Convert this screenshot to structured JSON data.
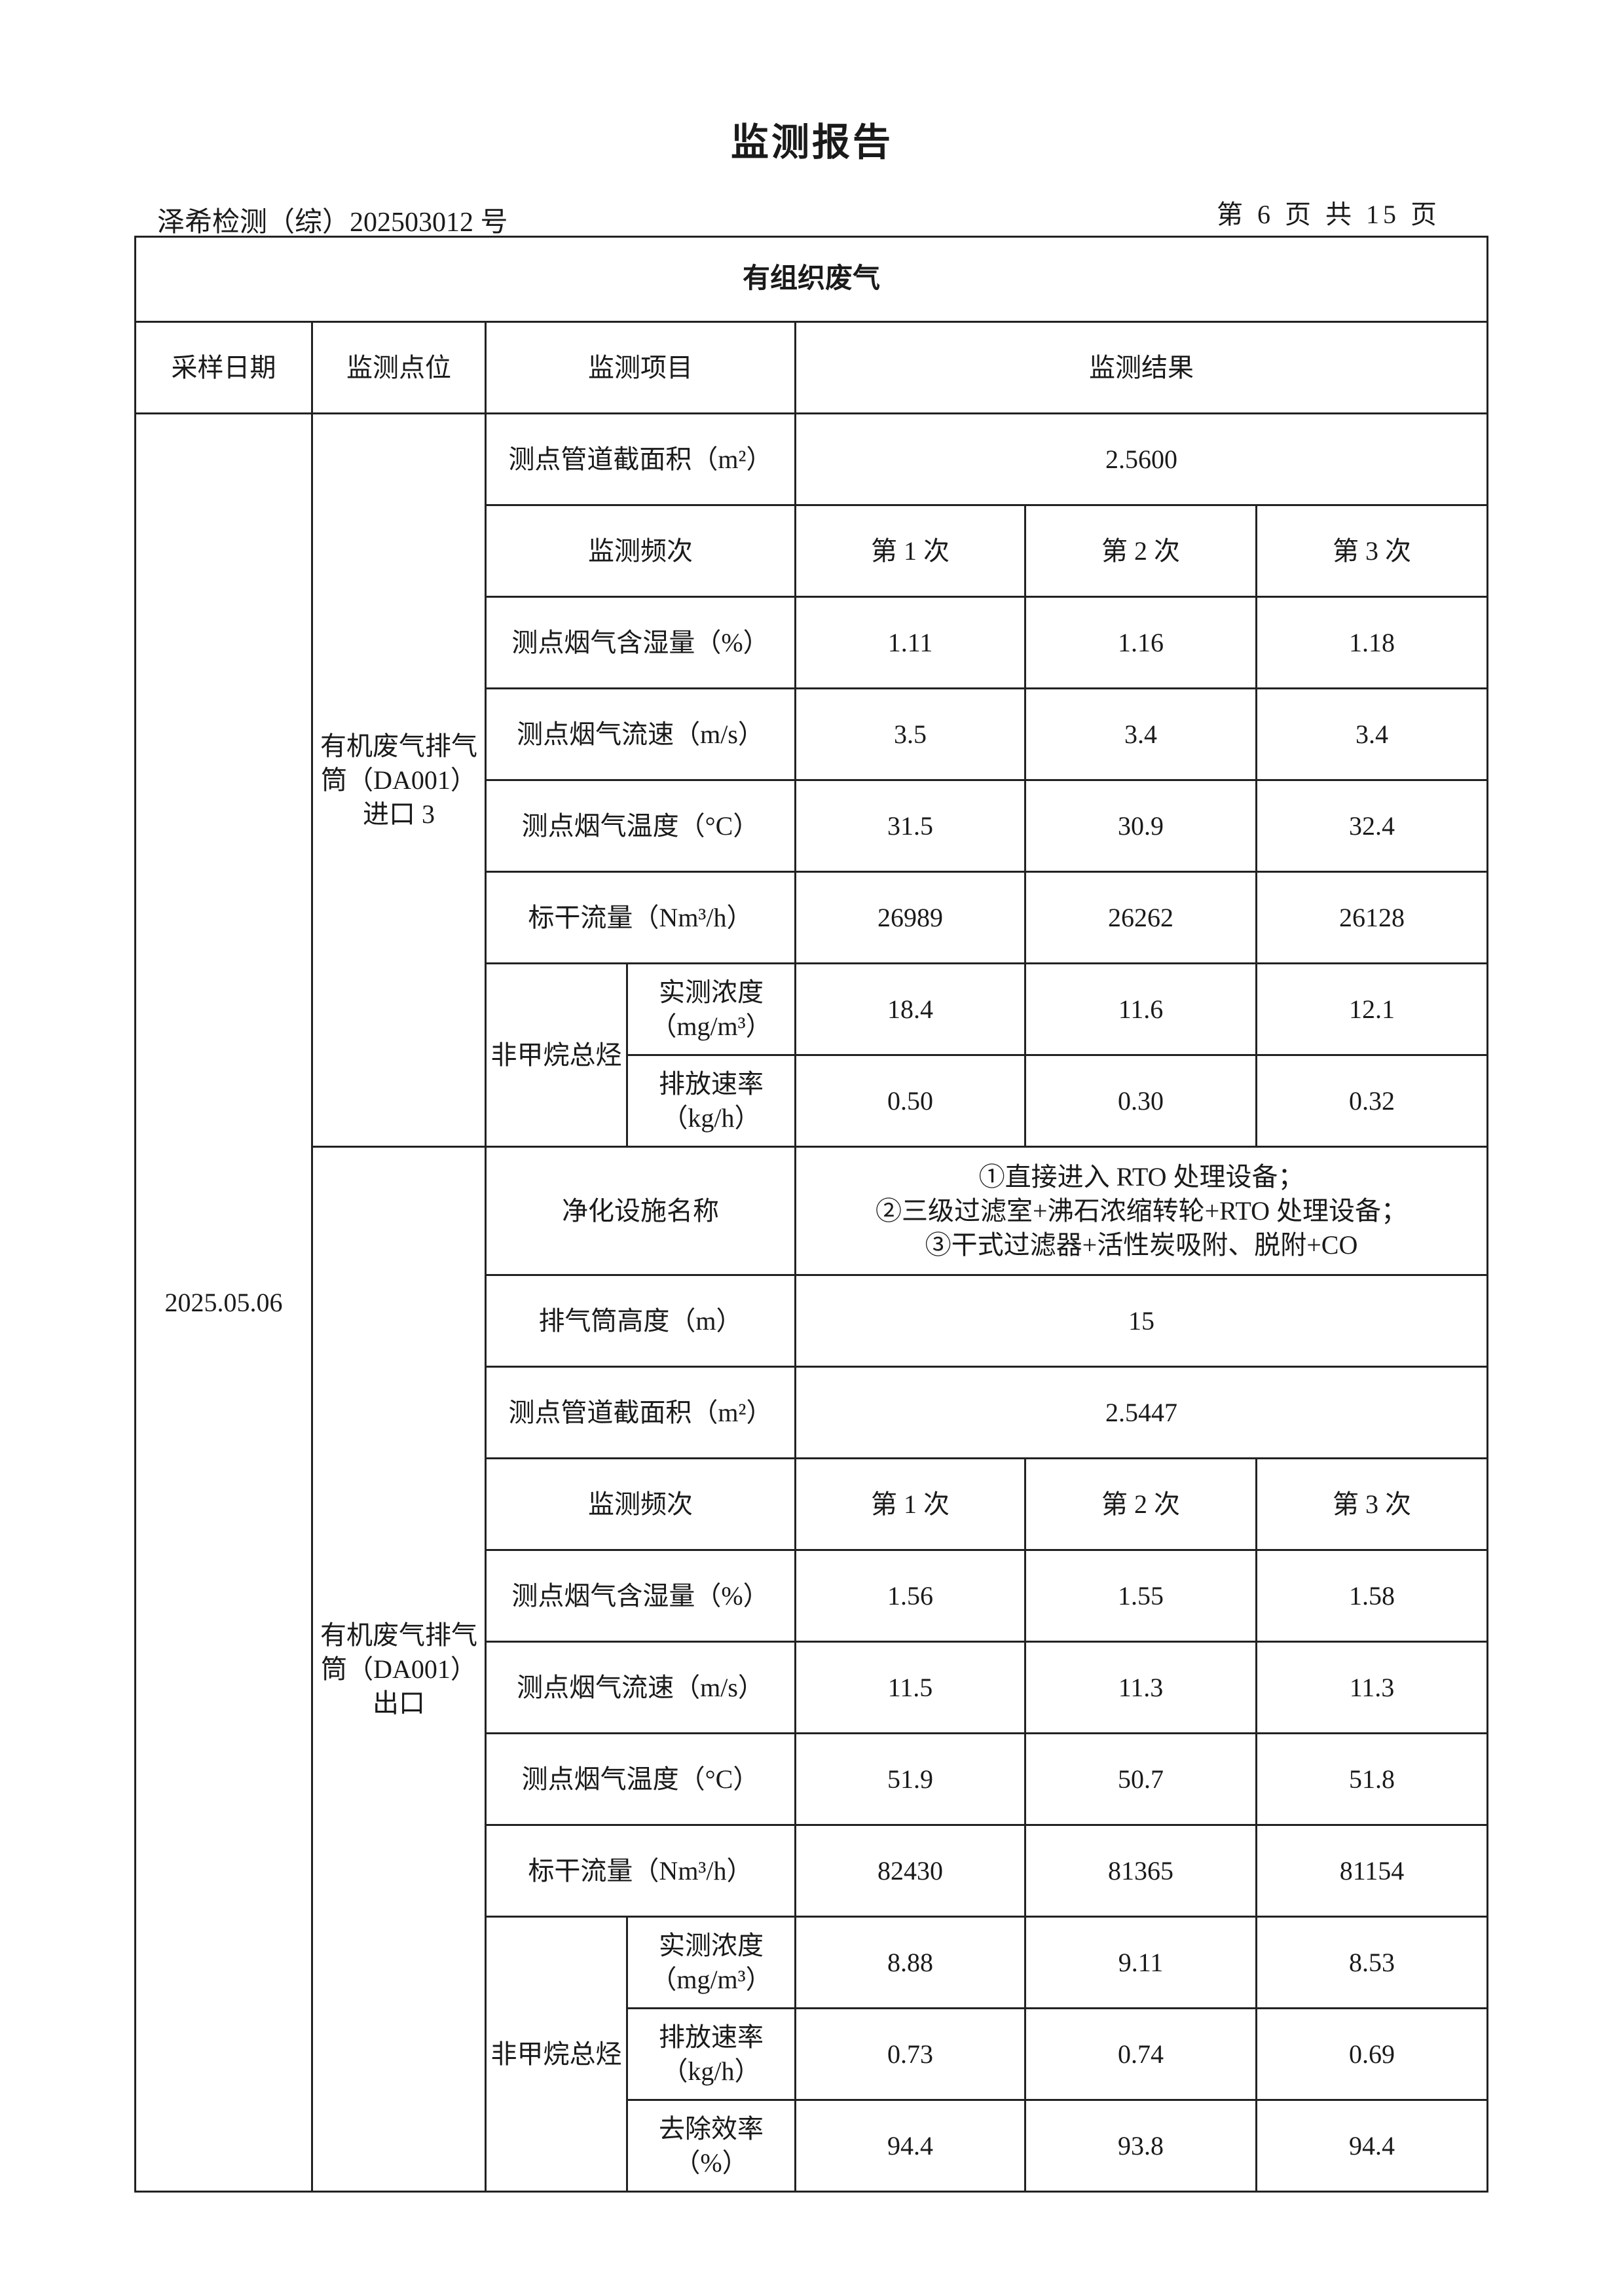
{
  "header": {
    "title": "监测报告",
    "doc_no": "泽希检测（综）202503012 号",
    "page": "第 6 页 共 15 页"
  },
  "table": {
    "section_title": "有组织废气",
    "columns": [
      "采样日期",
      "监测点位",
      "监测项目",
      "监测结果"
    ],
    "date": "2025.05.06",
    "inlet": {
      "location": "有机废气排气筒（DA001）进口 3",
      "area_label": "测点管道截面积（m²）",
      "area_value": "2.5600",
      "freq_label": "监测频次",
      "freq": [
        "第 1 次",
        "第 2 次",
        "第 3 次"
      ],
      "rows": [
        {
          "label": "测点烟气含湿量（%）",
          "values": [
            "1.11",
            "1.16",
            "1.18"
          ]
        },
        {
          "label": "测点烟气流速（m/s）",
          "values": [
            "3.5",
            "3.4",
            "3.4"
          ]
        },
        {
          "label": "测点烟气温度（°C）",
          "values": [
            "31.5",
            "30.9",
            "32.4"
          ]
        },
        {
          "label": "标干流量（Nm³/h）",
          "values": [
            "26989",
            "26262",
            "26128"
          ]
        }
      ],
      "nmhc_label": "非甲烷总烃",
      "nmhc_rows": [
        {
          "label": "实测浓度（mg/m³）",
          "values": [
            "18.4",
            "11.6",
            "12.1"
          ]
        },
        {
          "label": "排放速率（kg/h）",
          "values": [
            "0.50",
            "0.30",
            "0.32"
          ]
        }
      ]
    },
    "outlet": {
      "location": "有机废气排气筒（DA001）出口",
      "facility_label": "净化设施名称",
      "facility_lines": [
        "①直接进入 RTO 处理设备；",
        "②三级过滤室+沸石浓缩转轮+RTO 处理设备；",
        "③干式过滤器+活性炭吸附、脱附+CO"
      ],
      "height_label": "排气筒高度（m）",
      "height_value": "15",
      "area_label": "测点管道截面积（m²）",
      "area_value": "2.5447",
      "freq_label": "监测频次",
      "freq": [
        "第 1 次",
        "第 2 次",
        "第 3 次"
      ],
      "rows": [
        {
          "label": "测点烟气含湿量（%）",
          "values": [
            "1.56",
            "1.55",
            "1.58"
          ]
        },
        {
          "label": "测点烟气流速（m/s）",
          "values": [
            "11.5",
            "11.3",
            "11.3"
          ]
        },
        {
          "label": "测点烟气温度（°C）",
          "values": [
            "51.9",
            "50.7",
            "51.8"
          ]
        },
        {
          "label": "标干流量（Nm³/h）",
          "values": [
            "82430",
            "81365",
            "81154"
          ]
        }
      ],
      "nmhc_label": "非甲烷总烃",
      "nmhc_rows": [
        {
          "label": "实测浓度（mg/m³）",
          "values": [
            "8.88",
            "9.11",
            "8.53"
          ]
        },
        {
          "label": "排放速率（kg/h）",
          "values": [
            "0.73",
            "0.74",
            "0.69"
          ]
        },
        {
          "label": "去除效率（%）",
          "values": [
            "94.4",
            "93.8",
            "94.4"
          ]
        }
      ]
    }
  }
}
